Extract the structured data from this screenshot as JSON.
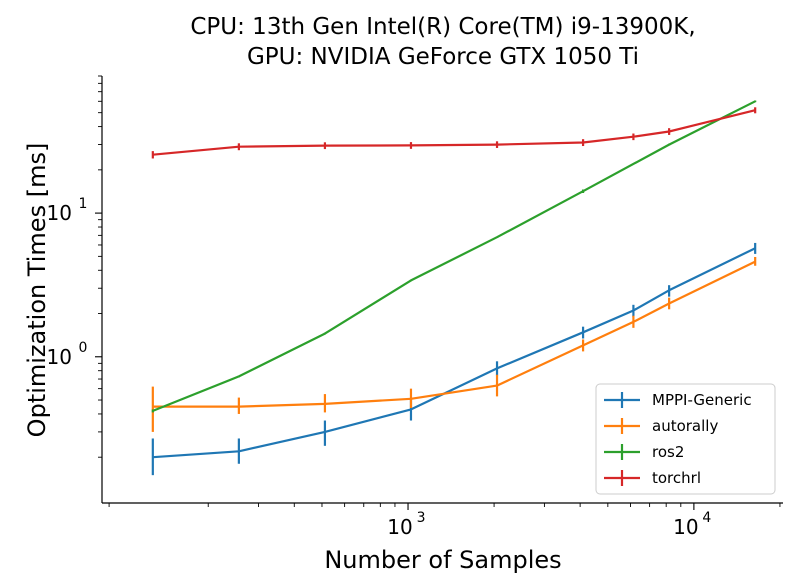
{
  "chart_data": {
    "type": "line",
    "title_lines": [
      "CPU: 13th Gen Intel(R) Core(TM) i9-13900K,",
      "GPU: NVIDIA GeForce GTX 1050 Ti"
    ],
    "xlabel": "Number of Samples",
    "ylabel": "Optimization Times [ms]",
    "xscale": "log",
    "yscale": "log",
    "xlim": [
      85,
      20500
    ],
    "ylim": [
      0.096,
      90
    ],
    "x_ticks": [
      {
        "value": 1000,
        "base": "10",
        "exp": "3"
      },
      {
        "value": 10000,
        "base": "10",
        "exp": "4"
      }
    ],
    "y_ticks": [
      {
        "value": 1,
        "base": "10",
        "exp": "0"
      },
      {
        "value": 10,
        "base": "10",
        "exp": "1"
      }
    ],
    "legend_position": "lower-right",
    "series": [
      {
        "name": "MPPI-Generic",
        "color": "#1f77b4",
        "x": [
          128,
          256,
          512,
          1024,
          2048,
          4096,
          6144,
          8192,
          16384
        ],
        "y": [
          0.2,
          0.22,
          0.3,
          0.43,
          0.83,
          1.48,
          2.1,
          2.9,
          5.7
        ],
        "err_low": [
          0.15,
          0.18,
          0.24,
          0.36,
          0.74,
          1.34,
          1.9,
          2.62,
          5.2
        ],
        "err_high": [
          0.27,
          0.27,
          0.36,
          0.52,
          0.93,
          1.62,
          2.3,
          3.15,
          6.2
        ]
      },
      {
        "name": "autorally",
        "color": "#ff7f0e",
        "x": [
          128,
          256,
          512,
          1024,
          2048,
          4096,
          6144,
          8192,
          16384
        ],
        "y": [
          0.45,
          0.45,
          0.47,
          0.51,
          0.63,
          1.2,
          1.75,
          2.35,
          4.6
        ],
        "err_low": [
          0.3,
          0.4,
          0.41,
          0.44,
          0.53,
          1.09,
          1.59,
          2.14,
          4.3
        ],
        "err_high": [
          0.62,
          0.52,
          0.55,
          0.6,
          0.75,
          1.32,
          1.93,
          2.58,
          4.95
        ]
      },
      {
        "name": "ros2",
        "color": "#2ca02c",
        "x": [
          128,
          256,
          512,
          1024,
          2048,
          4096,
          8192,
          16384
        ],
        "y": [
          0.42,
          0.73,
          1.45,
          3.4,
          6.8,
          14.2,
          30.0,
          60.0
        ],
        "err_low": [
          0.41,
          0.72,
          1.43,
          3.36,
          6.73,
          13.8,
          29.6,
          59.2
        ],
        "err_high": [
          0.43,
          0.74,
          1.47,
          3.44,
          6.87,
          14.6,
          30.4,
          60.8
        ]
      },
      {
        "name": "torchrl",
        "color": "#d62728",
        "x": [
          128,
          256,
          512,
          1024,
          2048,
          4096,
          6144,
          8192,
          16384
        ],
        "y": [
          25.5,
          29.0,
          29.5,
          29.6,
          30.0,
          31.0,
          34.0,
          37.0,
          52.0
        ],
        "err_low": [
          24.0,
          27.4,
          27.9,
          28.0,
          28.4,
          29.3,
          32.2,
          35.0,
          49.5
        ],
        "err_high": [
          27.0,
          30.6,
          31.1,
          31.2,
          31.6,
          32.7,
          35.8,
          39.0,
          54.5
        ]
      }
    ]
  }
}
